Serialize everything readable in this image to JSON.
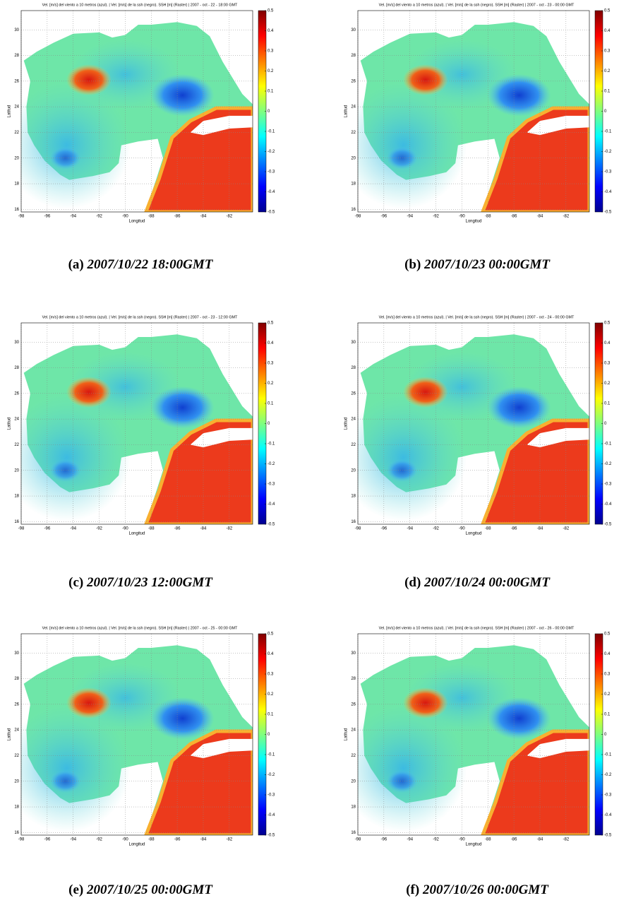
{
  "axes": {
    "xlabel": "Longitud",
    "ylabel": "Latitud",
    "xlim": [
      -98,
      -80.2
    ],
    "ylim": [
      15.8,
      31.5
    ],
    "xticks": [
      -98,
      -96,
      -94,
      -92,
      -90,
      -88,
      -86,
      -84,
      -82
    ],
    "yticks": [
      16,
      18,
      20,
      22,
      24,
      26,
      28,
      30
    ],
    "clim": [
      -0.5,
      0.5
    ],
    "cticks": [
      -0.5,
      -0.4,
      -0.3,
      -0.2,
      -0.1,
      0,
      0.1,
      0.2,
      0.3,
      0.4,
      0.5
    ]
  },
  "panels": [
    {
      "title": "Vel. [m/s] del viento a 10 metros (azul). | Vel. [m/s] de la ssh (negro). SSH [m] (Raster) | 2007 - oct - 22 - 18:00 GMT",
      "label": "(a)",
      "caption": "2007/10/22 18:00GMT"
    },
    {
      "title": "Vel. [m/s] del viento a 10 metros (azul). | Vel. [m/s] de la ssh (negro). SSH [m] (Raster) | 2007 - oct - 23 - 00:00 GMT",
      "label": "(b)",
      "caption": "2007/10/23 00:00GMT"
    },
    {
      "title": "Vel. [m/s] del viento a 10 metros (azul). | Vel. [m/s] de la ssh (negro). SSH [m] (Raster) | 2007 - oct - 23 - 12:00 GMT",
      "label": "(c)",
      "caption": "2007/10/23 12:00GMT"
    },
    {
      "title": "Vel. [m/s] del viento a 10 metros (azul). | Vel. [m/s] de la ssh (negro). SSH [m] (Raster) | 2007 - oct - 24 - 00:00 GMT",
      "label": "(d)",
      "caption": "2007/10/24 00:00GMT"
    },
    {
      "title": "Vel. [m/s] del viento a 10 metros (azul). | Vel. [m/s] de la ssh (negro). SSH [m] (Raster) | 2007 - oct - 25 - 00:00 GMT",
      "label": "(e)",
      "caption": "2007/10/25 00:00GMT"
    },
    {
      "title": "Vel. [m/s] del viento a 10 metros (azul). | Vel. [m/s] de la ssh (negro). SSH [m] (Raster) | 2007 - oct - 26 - 00:00 GMT",
      "label": "(f)",
      "caption": "2007/10/26 00:00GMT"
    }
  ]
}
